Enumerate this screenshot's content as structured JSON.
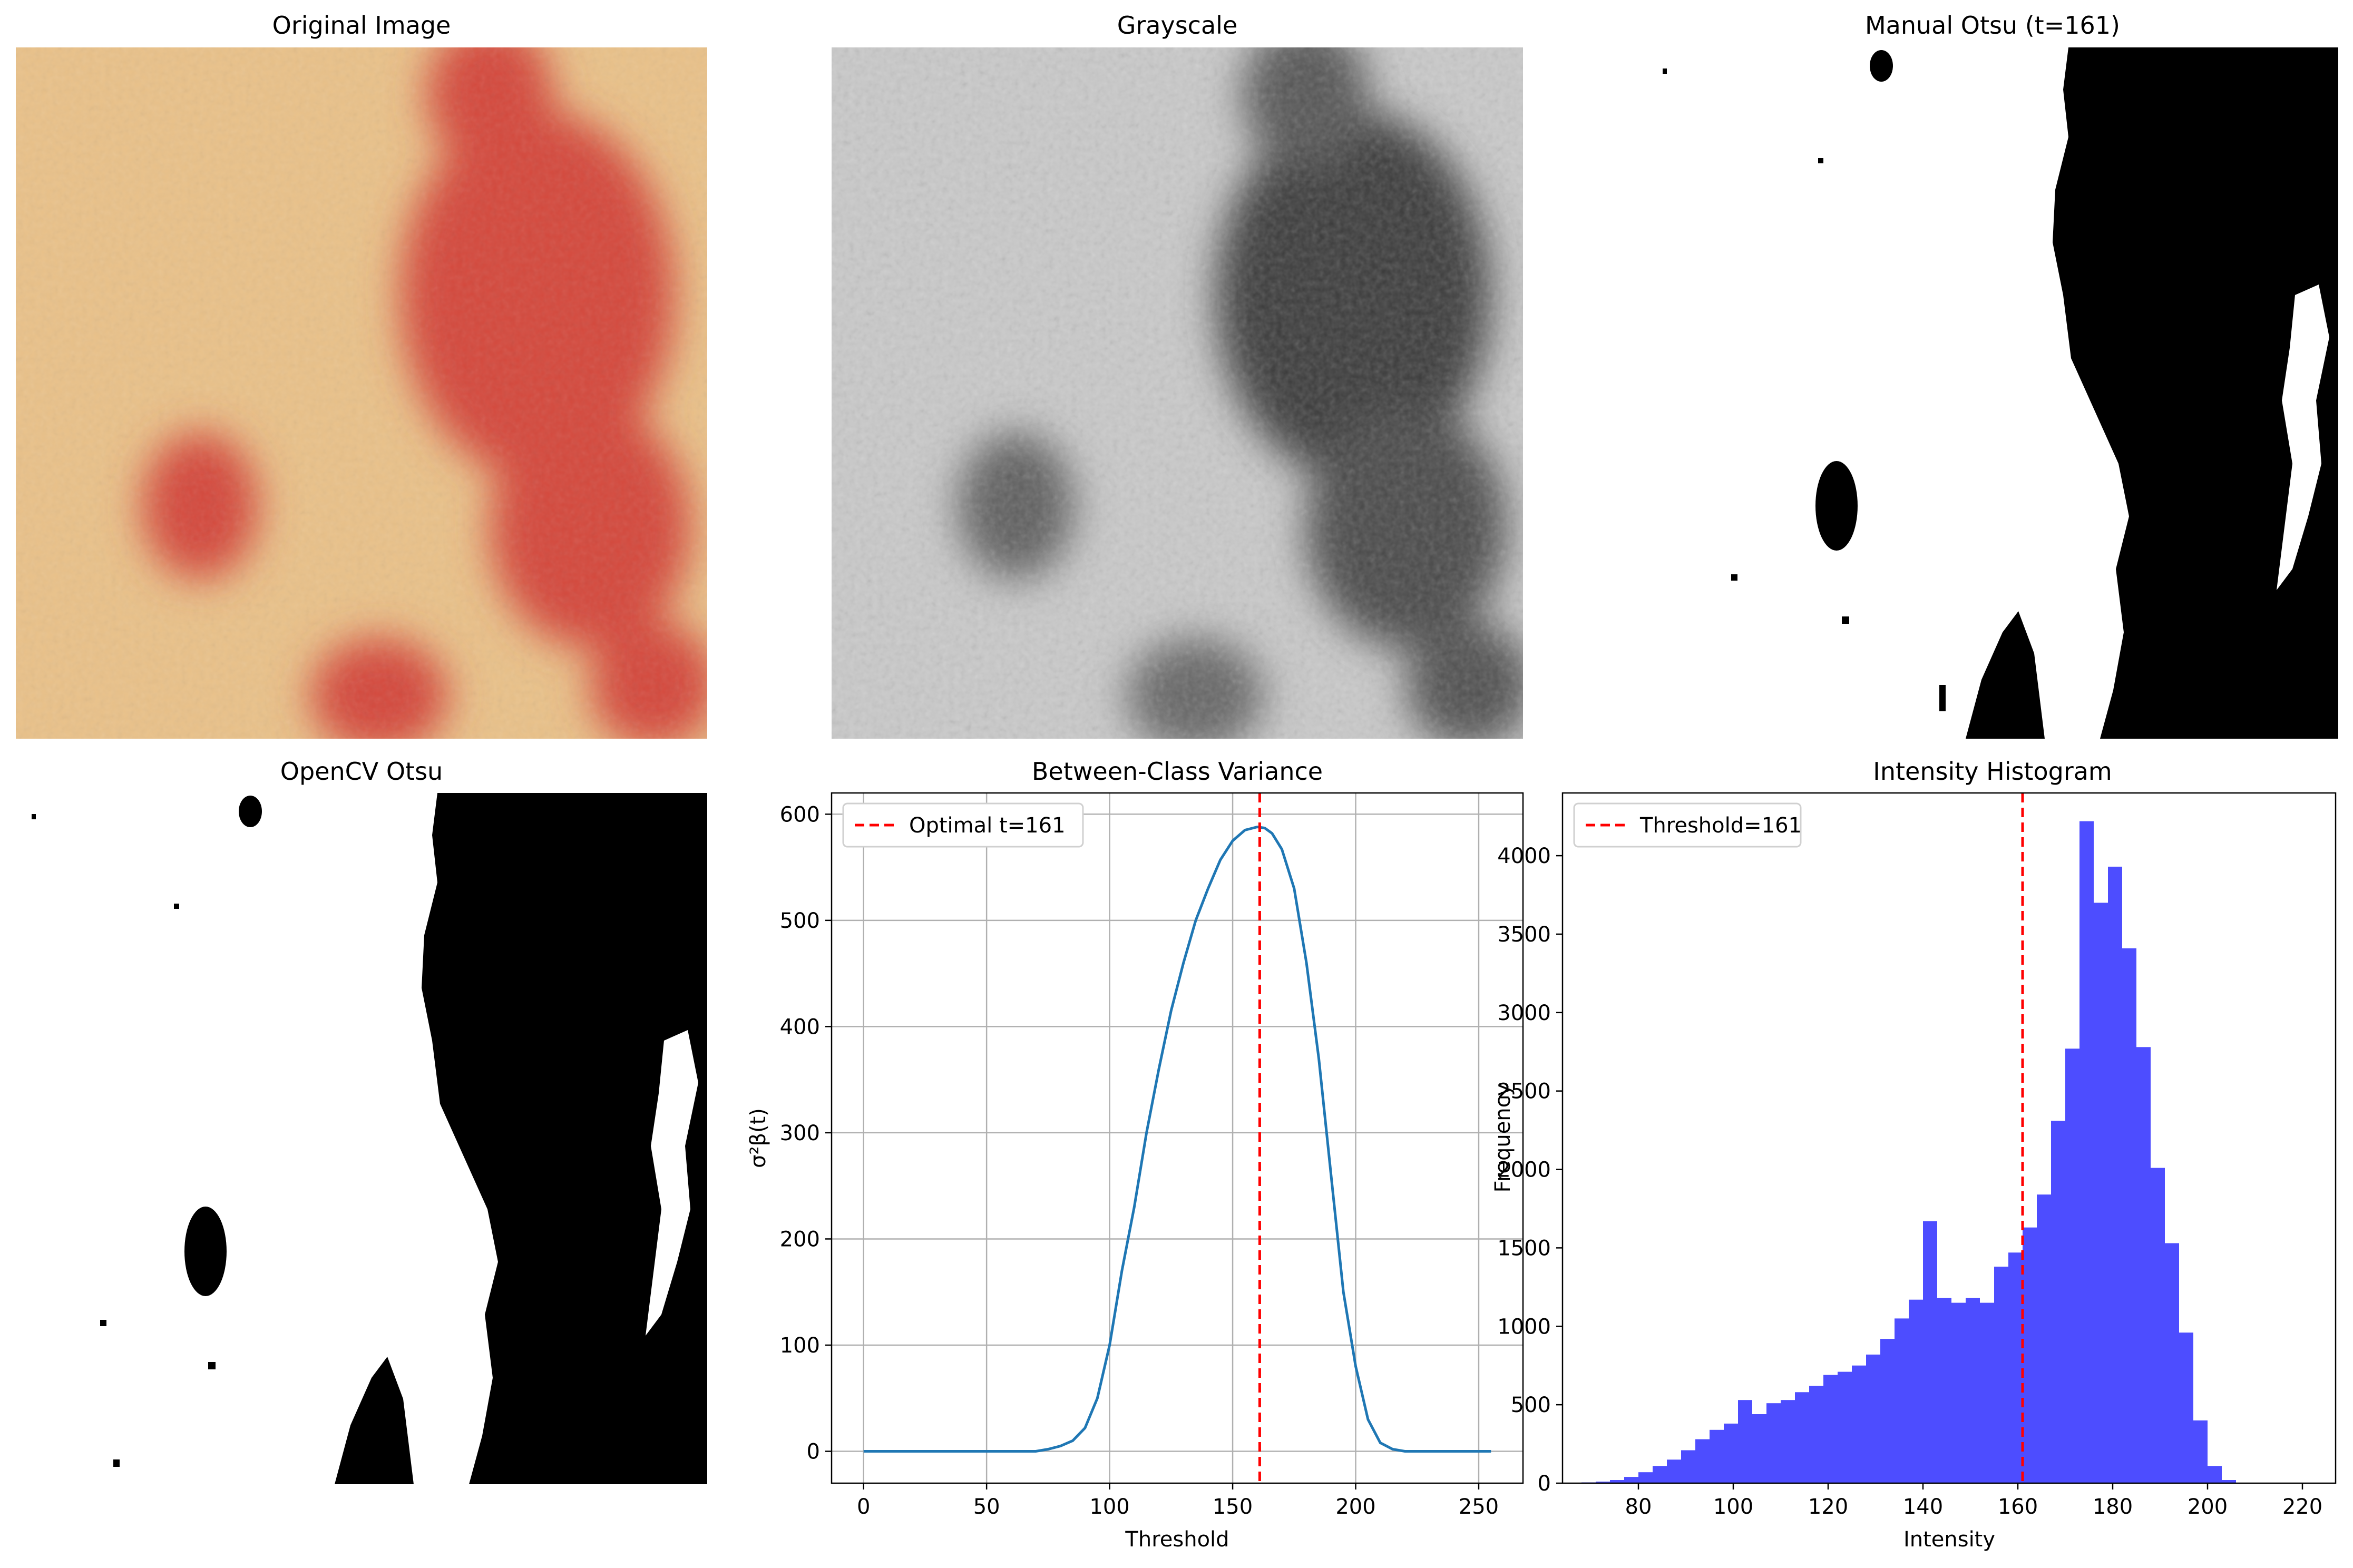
{
  "figure": {
    "panels": [
      {
        "id": "original",
        "title": "Original Image"
      },
      {
        "id": "grayscale",
        "title": "Grayscale"
      },
      {
        "id": "manual",
        "title": "Manual Otsu (t=161)"
      },
      {
        "id": "opencv",
        "title": "OpenCV Otsu"
      }
    ]
  },
  "colors": {
    "curve": "#1f77b4",
    "threshold_line": "#ff0000",
    "histogram_bars": "#4d4dff",
    "grid": "#b0b0b0",
    "skin": "#e9c189",
    "lesion": "#d44a3e"
  },
  "chart_data": [
    {
      "type": "line",
      "title": "Between-Class Variance",
      "xlabel": "Threshold",
      "ylabel": "σ²β(t)",
      "xlim": [
        -13,
        268
      ],
      "ylim": [
        -30,
        620
      ],
      "xticks": [
        0,
        50,
        100,
        150,
        200,
        250
      ],
      "yticks": [
        0,
        100,
        200,
        300,
        400,
        500,
        600
      ],
      "grid": true,
      "legend": {
        "location": "top-left",
        "entries": [
          "Optimal t=161"
        ]
      },
      "vline": {
        "x": 161,
        "label": "Optimal t=161",
        "style": "dashed"
      },
      "x": [
        0,
        60,
        70,
        75,
        80,
        85,
        90,
        95,
        100,
        105,
        110,
        115,
        120,
        125,
        130,
        135,
        140,
        145,
        150,
        155,
        160,
        163,
        166,
        170,
        175,
        180,
        185,
        190,
        195,
        200,
        205,
        210,
        215,
        220,
        225,
        255
      ],
      "y": [
        0,
        0,
        0,
        2,
        5,
        10,
        22,
        50,
        100,
        170,
        230,
        300,
        360,
        415,
        460,
        500,
        530,
        557,
        575,
        585,
        588,
        587,
        582,
        567,
        530,
        460,
        370,
        260,
        150,
        80,
        30,
        8,
        2,
        0,
        0,
        0
      ]
    },
    {
      "type": "bar",
      "title": "Intensity Histogram",
      "xlabel": "Intensity",
      "ylabel": "Frequency",
      "xlim": [
        64,
        227
      ],
      "ylim": [
        0,
        4400
      ],
      "xticks": [
        80,
        100,
        120,
        140,
        160,
        180,
        200,
        220
      ],
      "yticks": [
        0,
        500,
        1000,
        1500,
        2000,
        2500,
        3000,
        3500,
        4000
      ],
      "grid": false,
      "legend": {
        "location": "top-left",
        "entries": [
          "Threshold=161"
        ]
      },
      "vline": {
        "x": 161,
        "label": "Threshold=161",
        "style": "dashed"
      },
      "bin_start": 68,
      "bin_width": 3,
      "values": [
        5,
        10,
        20,
        40,
        70,
        110,
        150,
        210,
        280,
        340,
        380,
        530,
        440,
        510,
        530,
        580,
        620,
        690,
        710,
        750,
        820,
        920,
        1050,
        1170,
        1670,
        1180,
        1150,
        1180,
        1150,
        1380,
        1470,
        1630,
        1840,
        2310,
        2770,
        4220,
        3700,
        3930,
        3410,
        2780,
        2010,
        1530,
        960,
        400,
        110,
        20
      ]
    }
  ]
}
